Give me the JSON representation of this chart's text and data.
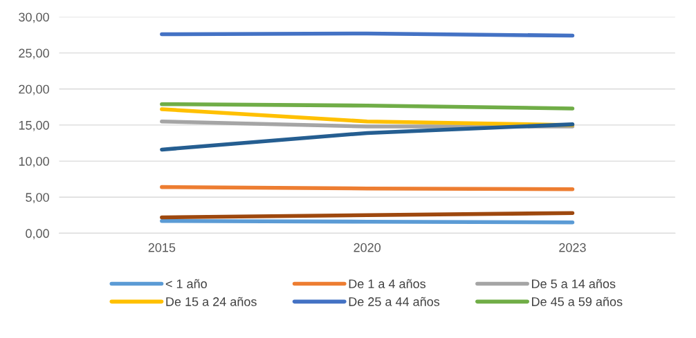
{
  "chart_data": {
    "type": "line",
    "categories": [
      "2015",
      "2020",
      "2023"
    ],
    "series": [
      {
        "name": "< 1 año",
        "color": "#5b9bd5",
        "values": [
          1.7,
          1.6,
          1.5
        ]
      },
      {
        "name": "De 1 a 4 años",
        "color": "#ed7d31",
        "values": [
          6.4,
          6.2,
          6.1
        ]
      },
      {
        "name": "De 5 a 14 años",
        "color": "#a5a5a5",
        "values": [
          15.5,
          14.8,
          14.8
        ]
      },
      {
        "name": "De 15 a 24 años",
        "color": "#ffc000",
        "values": [
          17.2,
          15.5,
          15.0
        ]
      },
      {
        "name": "De 25 a 44 años",
        "color": "#4472c4",
        "values": [
          27.6,
          27.7,
          27.4
        ]
      },
      {
        "name": "De 45 a 59 años",
        "color": "#70ad47",
        "values": [
          17.9,
          17.7,
          17.3
        ]
      },
      {
        "color": "#255e91",
        "values": [
          11.6,
          13.9,
          15.1
        ]
      },
      {
        "color": "#9e480e",
        "values": [
          2.2,
          2.5,
          2.8
        ]
      }
    ],
    "ylim": [
      0,
      30
    ],
    "yticks": [
      {
        "value": 0,
        "label": "0,00"
      },
      {
        "value": 5,
        "label": "5,00"
      },
      {
        "value": 10,
        "label": "10,00"
      },
      {
        "value": 15,
        "label": "15,00"
      },
      {
        "value": 20,
        "label": "20,00"
      },
      {
        "value": 25,
        "label": "25,00"
      },
      {
        "value": 30,
        "label": "30,00"
      }
    ],
    "grid": "y",
    "legend": "bottom",
    "marker": "none",
    "line_style": "solid"
  }
}
